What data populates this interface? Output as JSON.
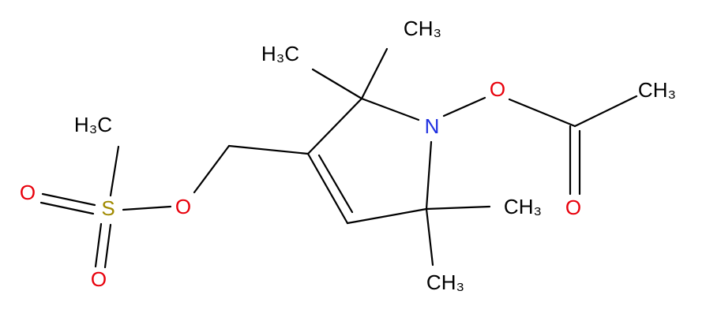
{
  "atoms": [
    {
      "label": "H₃C"
    },
    {
      "label": "CH₃"
    },
    {
      "label": "O"
    },
    {
      "label": "CH₃"
    },
    {
      "label": "N"
    },
    {
      "label": "CH₃"
    },
    {
      "label": "O"
    },
    {
      "label": "CH₃"
    },
    {
      "label": "H₃C"
    },
    {
      "label": "S"
    },
    {
      "label": "O"
    },
    {
      "label": "O"
    },
    {
      "label": "O"
    }
  ]
}
